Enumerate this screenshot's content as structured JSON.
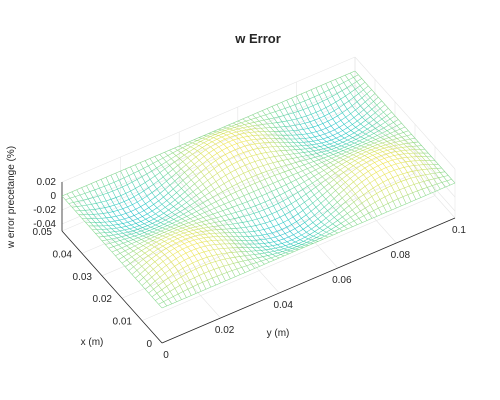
{
  "chart_data": {
    "type": "surface",
    "title": "w Error",
    "xlabel": "x (m)",
    "ylabel": "y (m)",
    "zlabel": "w error precetange (%)",
    "xlim": [
      0,
      0.05
    ],
    "ylim": [
      0,
      0.1
    ],
    "zlim": [
      -0.05,
      0.02
    ],
    "x_ticks": [
      "0",
      "0.01",
      "0.02",
      "0.03",
      "0.04",
      "0.05"
    ],
    "y_ticks": [
      "0",
      "0.02",
      "0.04",
      "0.06",
      "0.08",
      "0.1"
    ],
    "z_ticks": [
      "0.02",
      "0",
      "-0.02",
      "-0.04"
    ],
    "surface": {
      "description_function": "z = 0.02 * sin(3πy/0.1) * sin(2πx/0.05) * envelope",
      "x_humps": 2,
      "y_humps": 3,
      "amplitude": 0.02,
      "min_value": -0.045
    },
    "grid": true,
    "colormap": [
      "#3a3ad6",
      "#2f8cd6",
      "#24c6c6",
      "#5fd3a0",
      "#c8e06a",
      "#f6e54a"
    ]
  }
}
